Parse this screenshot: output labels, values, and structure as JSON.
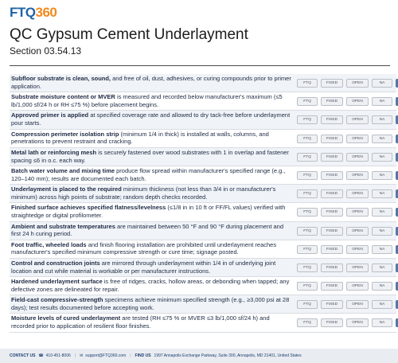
{
  "brand": {
    "ftq": "FTQ",
    "num": "360"
  },
  "header": {
    "title": "QC Gypsum Cement Underlayment",
    "section": "Section 03.54.13"
  },
  "buttons": {
    "ftq": "FTQ",
    "fixed": "FIXED",
    "open": "OPEN",
    "na": "NA"
  },
  "items": [
    {
      "bold": "Subfloor substrate is clean, sound,",
      "rest": " and free of oil, dust, adhesives, or curing compounds prior to primer application."
    },
    {
      "bold": "Substrate moisture content or MVER",
      "rest": " is measured and recorded below manufacturer's maximum (≤5 lb/1,000 sf/24 h or RH ≤75 %) before placement begins."
    },
    {
      "bold": "Approved primer is applied",
      "rest": " at specified coverage rate and allowed to dry tack-free before underlayment pour starts."
    },
    {
      "bold": "Compression perimeter isolation strip",
      "rest": " (minimum 1/4 in thick) is installed at walls, columns, and penetrations to prevent restraint and cracking."
    },
    {
      "bold": "Metal lath or reinforcing mesh",
      "rest": " is securely fastened over wood substrates with 1 in overlap and fastener spacing ≤6 in o.c. each way."
    },
    {
      "bold": "Batch water volume and mixing time",
      "rest": " produce flow spread within manufacturer's specified range (e.g., 120–140 mm); results are documented each batch."
    },
    {
      "bold": "Underlayment is placed to the required",
      "rest": " minimum thickness (not less than 3/4 in or manufacturer's minimum) across high points of substrate; random depth checks recorded."
    },
    {
      "bold": "Finished surface achieves specified flatness/levelness",
      "rest": " (≤1/8 in in 10 ft or FF/FL values) verified with straightedge or digital profilometer."
    },
    {
      "bold": "Ambient and substrate temperatures",
      "rest": " are maintained between 50 °F and 90 °F during placement and first 24 h curing period."
    },
    {
      "bold": "Foot traffic, wheeled loads",
      "rest": " and finish flooring installation are prohibited until underlayment reaches manufacturer's specified minimum compressive strength or cure time; signage posted."
    },
    {
      "bold": "Control and construction joints",
      "rest": " are mirrored through underlayment within 1/4 in of underlying joint location and cut while material is workable or per manufacturer instructions."
    },
    {
      "bold": "Hardened underlayment surface",
      "rest": " is free of ridges, cracks, hollow areas, or debonding when tapped; any defective zones are delineated for repair."
    },
    {
      "bold": "Field-cast compressive-strength",
      "rest": " specimens achieve minimum specified strength (e.g., ≥3,000 psi at 28 days); test results documented before accepting work."
    },
    {
      "bold": "Moisture levels of cured underlayment",
      "rest": " are tested (RH ≤75 % or MVER ≤3 lb/1,000 sf/24 h) and recorded prior to application of resilient floor finishes."
    }
  ],
  "footer": {
    "contact_label": "CONTACT US",
    "phone": "410-451-8006",
    "email": "support@FTQ360.com",
    "find_label": "FIND US",
    "address": "1997 Annapolis Exchange Parkway, Suite 300, Annapolis, MD 21401, United States"
  }
}
